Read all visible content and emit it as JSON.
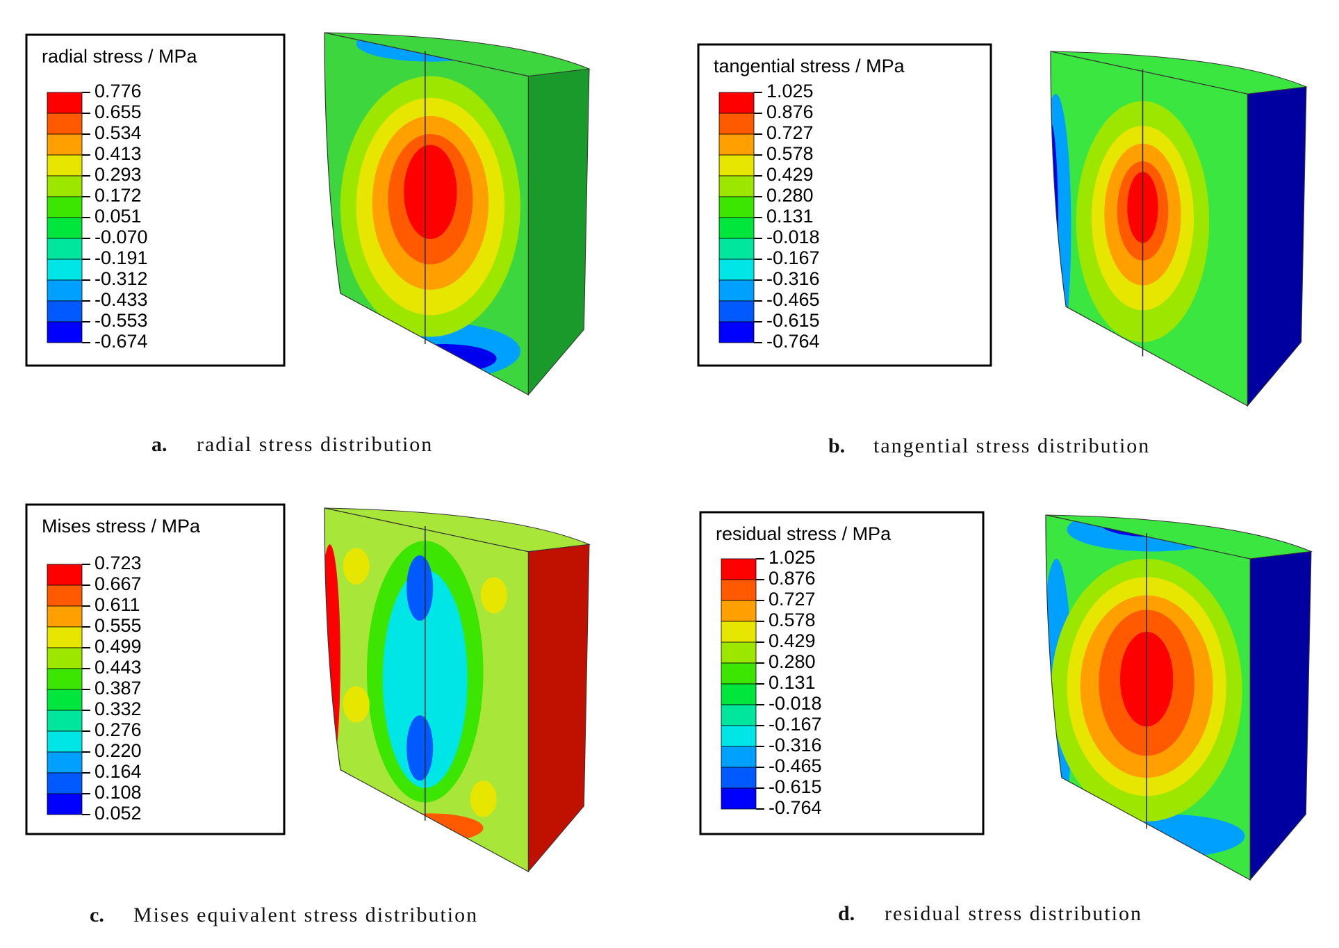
{
  "panels": [
    {
      "legend_title": "radial stress / MPa",
      "legend_labels": [
        "0.776",
        "0.655",
        "0.534",
        "0.413",
        "0.293",
        "0.172",
        "0.051",
        "-0.070",
        "-0.191",
        "-0.312",
        "-0.433",
        "-0.553",
        "-0.674"
      ],
      "caption_label": "a.",
      "caption": "radial stress distribution"
    },
    {
      "legend_title": "tangential stress / MPa",
      "legend_labels": [
        "1.025",
        "0.876",
        "0.727",
        "0.578",
        "0.429",
        "0.280",
        "0.131",
        "-0.018",
        "-0.167",
        "-0.316",
        "-0.465",
        "-0.615",
        "-0.764"
      ],
      "caption_label": "b.",
      "caption": "tangential stress distribution"
    },
    {
      "legend_title": "Mises stress / MPa",
      "legend_labels": [
        "0.723",
        "0.667",
        "0.611",
        "0.555",
        "0.499",
        "0.443",
        "0.387",
        "0.332",
        "0.276",
        "0.220",
        "0.164",
        "0.108",
        "0.052"
      ],
      "caption_label": "c.",
      "caption": "Mises equivalent stress distribution"
    },
    {
      "legend_title": "residual stress / MPa",
      "legend_labels": [
        "1.025",
        "0.876",
        "0.727",
        "0.578",
        "0.429",
        "0.280",
        "0.131",
        "-0.018",
        "-0.167",
        "-0.316",
        "-0.465",
        "-0.615",
        "-0.764"
      ],
      "caption_label": "d.",
      "caption": "residual stress distribution"
    }
  ]
}
